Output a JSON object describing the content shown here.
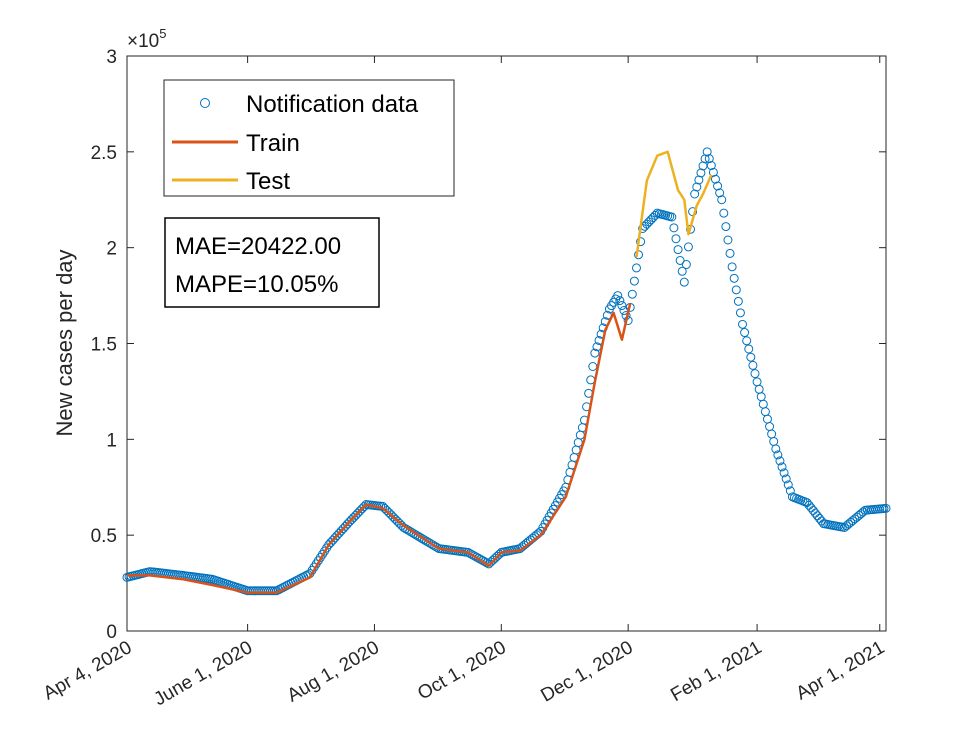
{
  "chart_data": {
    "type": "line",
    "xlabel": "",
    "ylabel": "New cases per day",
    "y_exponent_label": "×10",
    "y_exponent_power": "5",
    "ylim": [
      0,
      300000
    ],
    "xlim": [
      "2020-04-04",
      "2021-04-04"
    ],
    "y_ticks": [
      0,
      50000,
      100000,
      150000,
      200000,
      250000,
      300000
    ],
    "y_tick_labels": [
      "0",
      "0.5",
      "1",
      "1.5",
      "2",
      "2.5",
      "3"
    ],
    "x_ticks": [
      "2020-04-04",
      "2020-06-01",
      "2020-08-01",
      "2020-10-01",
      "2020-12-01",
      "2021-02-01",
      "2021-04-01"
    ],
    "x_tick_labels": [
      "Apr 4, 2020",
      "June 1, 2020",
      "Aug 1, 2020",
      "Oct 1, 2020",
      "Dec 1, 2020",
      "Feb 1, 2021",
      "Apr 1, 2021"
    ],
    "grid": false,
    "legend_position": "top-left",
    "annotation": [
      "MAE=20422.00",
      "MAPE=10.05%"
    ],
    "series": [
      {
        "name": "Notification data",
        "style": "circle-markers",
        "color": "#0072BD",
        "x": [
          "2020-04-04",
          "2020-04-15",
          "2020-05-01",
          "2020-05-15",
          "2020-06-01",
          "2020-06-15",
          "2020-07-01",
          "2020-07-10",
          "2020-07-20",
          "2020-07-28",
          "2020-08-05",
          "2020-08-15",
          "2020-09-01",
          "2020-09-15",
          "2020-09-25",
          "2020-10-01",
          "2020-10-10",
          "2020-10-20",
          "2020-11-01",
          "2020-11-10",
          "2020-11-15",
          "2020-11-22",
          "2020-11-26",
          "2020-12-01",
          "2020-12-08",
          "2020-12-15",
          "2020-12-22",
          "2020-12-28",
          "2021-01-02",
          "2021-01-08",
          "2021-01-15",
          "2021-01-20",
          "2021-01-25",
          "2021-02-01",
          "2021-02-10",
          "2021-02-18",
          "2021-02-25",
          "2021-03-05",
          "2021-03-15",
          "2021-03-25",
          "2021-04-04"
        ],
        "y": [
          28000,
          31000,
          29000,
          27000,
          21000,
          21000,
          30000,
          45000,
          57000,
          66000,
          65000,
          54000,
          43000,
          41000,
          35000,
          41000,
          43000,
          52000,
          75000,
          110000,
          145000,
          168000,
          175000,
          162000,
          210000,
          218000,
          216000,
          182000,
          228000,
          250000,
          225000,
          190000,
          160000,
          130000,
          95000,
          70000,
          67000,
          56000,
          54000,
          63000,
          64000
        ]
      },
      {
        "name": "Train",
        "style": "line",
        "color": "#D95319",
        "x": [
          "2020-04-04",
          "2020-04-15",
          "2020-05-01",
          "2020-05-15",
          "2020-06-01",
          "2020-06-15",
          "2020-07-01",
          "2020-07-10",
          "2020-07-20",
          "2020-07-28",
          "2020-08-05",
          "2020-08-15",
          "2020-09-01",
          "2020-09-15",
          "2020-09-25",
          "2020-10-01",
          "2020-10-10",
          "2020-10-20",
          "2020-11-01",
          "2020-11-10",
          "2020-11-15",
          "2020-11-20",
          "2020-11-24",
          "2020-11-28",
          "2020-12-02"
        ],
        "y": [
          29000,
          29000,
          27000,
          24000,
          20000,
          20000,
          28000,
          45000,
          57000,
          66000,
          64000,
          55000,
          43000,
          41000,
          34000,
          41000,
          42000,
          50000,
          70000,
          100000,
          130000,
          157000,
          166000,
          152000,
          171000
        ]
      },
      {
        "name": "Test",
        "style": "line",
        "color": "#EDB120",
        "x": [
          "2020-12-05",
          "2020-12-10",
          "2020-12-15",
          "2020-12-20",
          "2020-12-25",
          "2020-12-28",
          "2020-12-30",
          "2021-01-03",
          "2021-01-06",
          "2021-01-10"
        ],
        "y": [
          195000,
          235000,
          248000,
          250000,
          230000,
          225000,
          207000,
          222000,
          228000,
          238000
        ]
      }
    ]
  }
}
